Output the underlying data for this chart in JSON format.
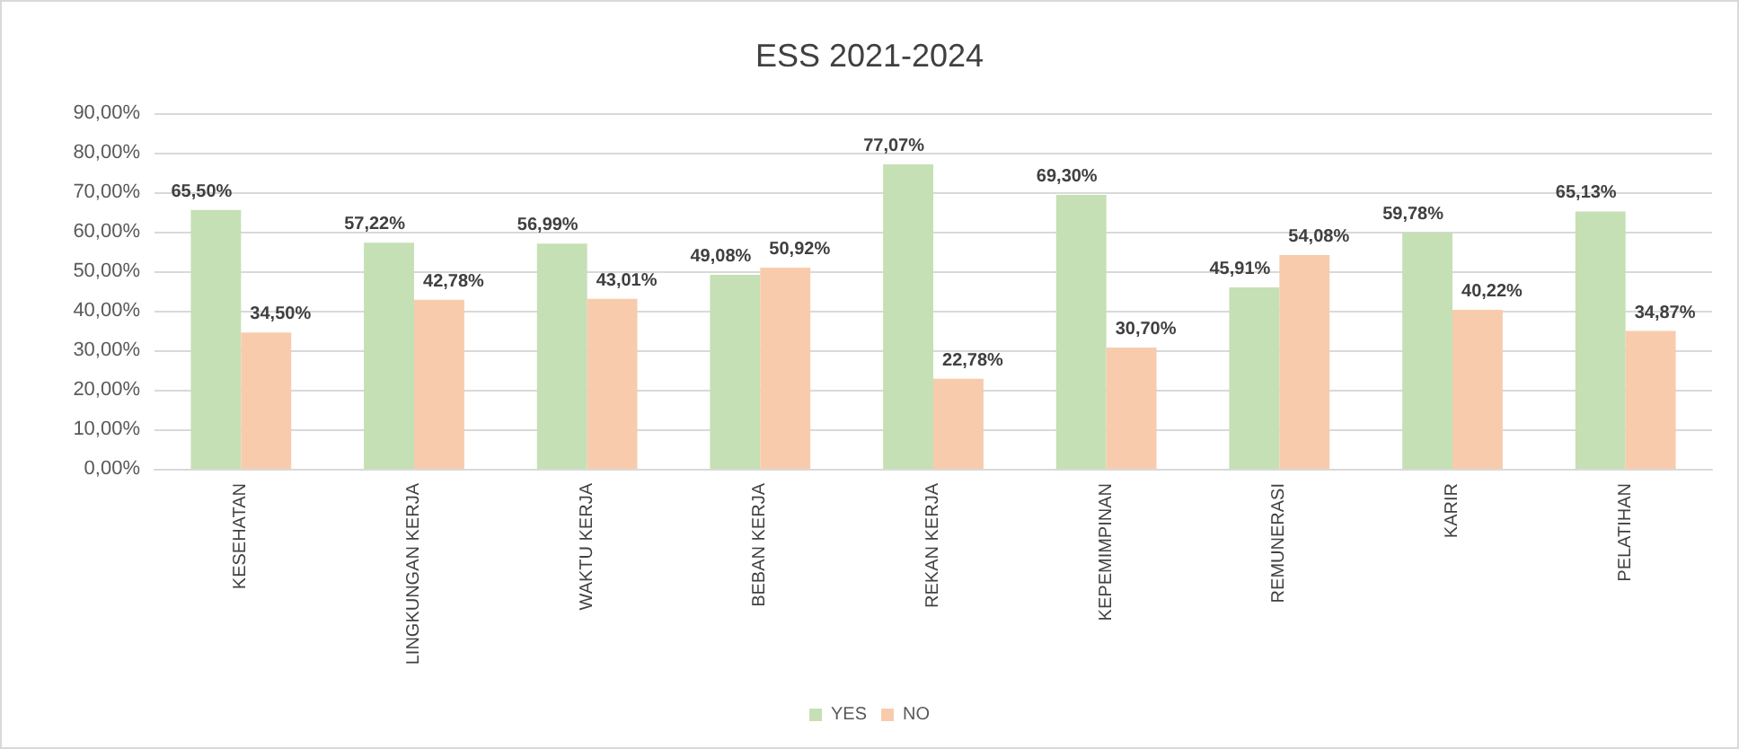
{
  "chart_data": {
    "type": "bar",
    "title": "ESS 2021-2024",
    "categories": [
      "KESEHATAN",
      "LINGKUNGAN KERJA",
      "WAKTU KERJA",
      "BEBAN KERJA",
      "REKAN KERJA",
      "KEPEMIMPINAN",
      "REMUNERASI",
      "KARIR",
      "PELATIHAN"
    ],
    "series": [
      {
        "name": "YES",
        "color": "#c5e0b4",
        "values": [
          65.5,
          57.22,
          56.99,
          49.08,
          77.07,
          69.3,
          45.91,
          59.78,
          65.13
        ],
        "value_labels": [
          "65,50%",
          "57,22%",
          "56,99%",
          "49,08%",
          "77,07%",
          "69,30%",
          "45,91%",
          "59,78%",
          "65,13%"
        ]
      },
      {
        "name": "NO",
        "color": "#f8cbad",
        "values": [
          34.5,
          42.78,
          43.01,
          50.92,
          22.78,
          30.7,
          54.08,
          40.22,
          34.87
        ],
        "value_labels": [
          "34,50%",
          "42,78%",
          "43,01%",
          "50,92%",
          "22,78%",
          "30,70%",
          "54,08%",
          "40,22%",
          "34,87%"
        ]
      }
    ],
    "ylim": [
      0,
      90
    ],
    "yticks": [
      {
        "value": 0,
        "label": "0,00%"
      },
      {
        "value": 10,
        "label": "10,00%"
      },
      {
        "value": 20,
        "label": "20,00%"
      },
      {
        "value": 30,
        "label": "30,00%"
      },
      {
        "value": 40,
        "label": "40,00%"
      },
      {
        "value": 50,
        "label": "50,00%"
      },
      {
        "value": 60,
        "label": "60,00%"
      },
      {
        "value": 70,
        "label": "70,00%"
      },
      {
        "value": 80,
        "label": "80,00%"
      },
      {
        "value": 90,
        "label": "90,00%"
      }
    ],
    "grid": "y",
    "legend": "bottom"
  }
}
